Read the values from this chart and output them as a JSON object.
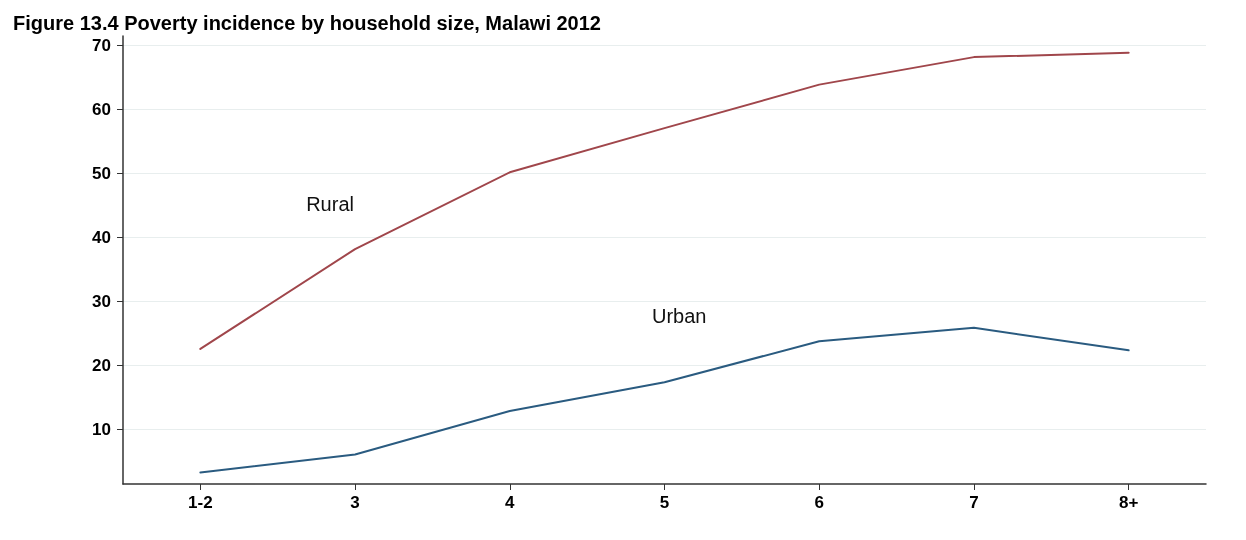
{
  "chart_data": {
    "type": "line",
    "title": "Figure 13.4 Poverty incidence by household size, Malawi 2012",
    "categories": [
      "1-2",
      "3",
      "4",
      "5",
      "6",
      "7",
      "8+"
    ],
    "series": [
      {
        "name": "Rural",
        "color": "#a0464b",
        "values": [
          22.6,
          38.2,
          50.2,
          57.1,
          63.9,
          68.2,
          68.9
        ]
      },
      {
        "name": "Urban",
        "color": "#2a5b80",
        "values": [
          3.3,
          6.1,
          12.9,
          17.4,
          23.8,
          25.9,
          22.4
        ]
      }
    ],
    "ylim": [
      1.5,
      71.5
    ],
    "yticks": [
      10,
      20,
      30,
      40,
      50,
      60,
      70
    ],
    "grid": "y",
    "legend": false,
    "marker": "none",
    "line_style": "solid"
  }
}
